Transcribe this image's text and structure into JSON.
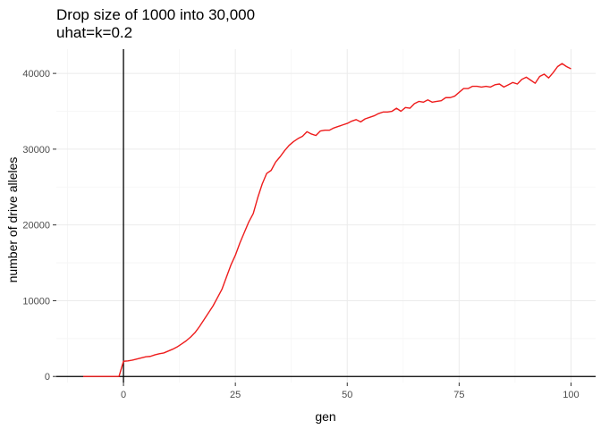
{
  "chart_data": {
    "type": "line",
    "title": "Drop size of 1000 into 30,000",
    "subtitle": "uhat=k=0.2",
    "xlabel": "gen",
    "ylabel": "number of drive alleles",
    "xlim": [
      -15,
      105.5
    ],
    "ylim": [
      -800,
      43200
    ],
    "x_ticks": [
      0,
      25,
      50,
      75,
      100
    ],
    "x_tick_labels": [
      "0",
      "25",
      "50",
      "75",
      "100"
    ],
    "y_ticks": [
      0,
      10000,
      20000,
      30000,
      40000
    ],
    "y_tick_labels": [
      "0",
      "10000",
      "20000",
      "30000",
      "40000"
    ],
    "reference_lines": {
      "hline_y": 0,
      "vline_x": 0
    },
    "grid": true,
    "legend": "none",
    "series": [
      {
        "color": "#ee1c1c",
        "x": [
          -9,
          -8,
          -7,
          -6,
          -5,
          -4,
          -3,
          -2,
          -1,
          0,
          1,
          2,
          3,
          4,
          5,
          6,
          7,
          8,
          9,
          10,
          11,
          12,
          13,
          14,
          15,
          16,
          17,
          18,
          19,
          20,
          21,
          22,
          23,
          24,
          25,
          26,
          27,
          28,
          29,
          30,
          31,
          32,
          33,
          34,
          35,
          36,
          37,
          38,
          39,
          40,
          41,
          42,
          43,
          44,
          45,
          46,
          47,
          48,
          49,
          50,
          51,
          52,
          53,
          54,
          55,
          56,
          57,
          58,
          59,
          60,
          61,
          62,
          63,
          64,
          65,
          66,
          67,
          68,
          69,
          70,
          71,
          72,
          73,
          74,
          75,
          76,
          77,
          78,
          79,
          80,
          81,
          82,
          83,
          84,
          85,
          86,
          87,
          88,
          89,
          90,
          91,
          92,
          93,
          94,
          95,
          96,
          97,
          98,
          99,
          100
        ],
        "y": [
          0,
          0,
          0,
          0,
          0,
          0,
          0,
          0,
          0,
          2000,
          2050,
          2150,
          2300,
          2450,
          2600,
          2650,
          2850,
          3000,
          3100,
          3350,
          3600,
          3900,
          4300,
          4700,
          5200,
          5800,
          6600,
          7500,
          8400,
          9300,
          10400,
          11500,
          13100,
          14700,
          16000,
          17600,
          19000,
          20400,
          21500,
          23600,
          25400,
          26800,
          27200,
          28300,
          29000,
          29800,
          30500,
          31000,
          31400,
          31700,
          32300,
          32000,
          31800,
          32400,
          32500,
          32500,
          32800,
          33000,
          33200,
          33400,
          33700,
          33900,
          33600,
          34000,
          34200,
          34400,
          34700,
          34900,
          34900,
          35000,
          35400,
          35000,
          35500,
          35400,
          36000,
          36300,
          36200,
          36500,
          36200,
          36300,
          36400,
          36800,
          36800,
          37000,
          37500,
          38000,
          38000,
          38300,
          38300,
          38200,
          38300,
          38200,
          38500,
          38600,
          38200,
          38500,
          38800,
          38600,
          39200,
          39500,
          39100,
          38700,
          39600,
          39900,
          39400,
          40100,
          40900,
          41300,
          40900,
          40600
        ]
      }
    ]
  }
}
